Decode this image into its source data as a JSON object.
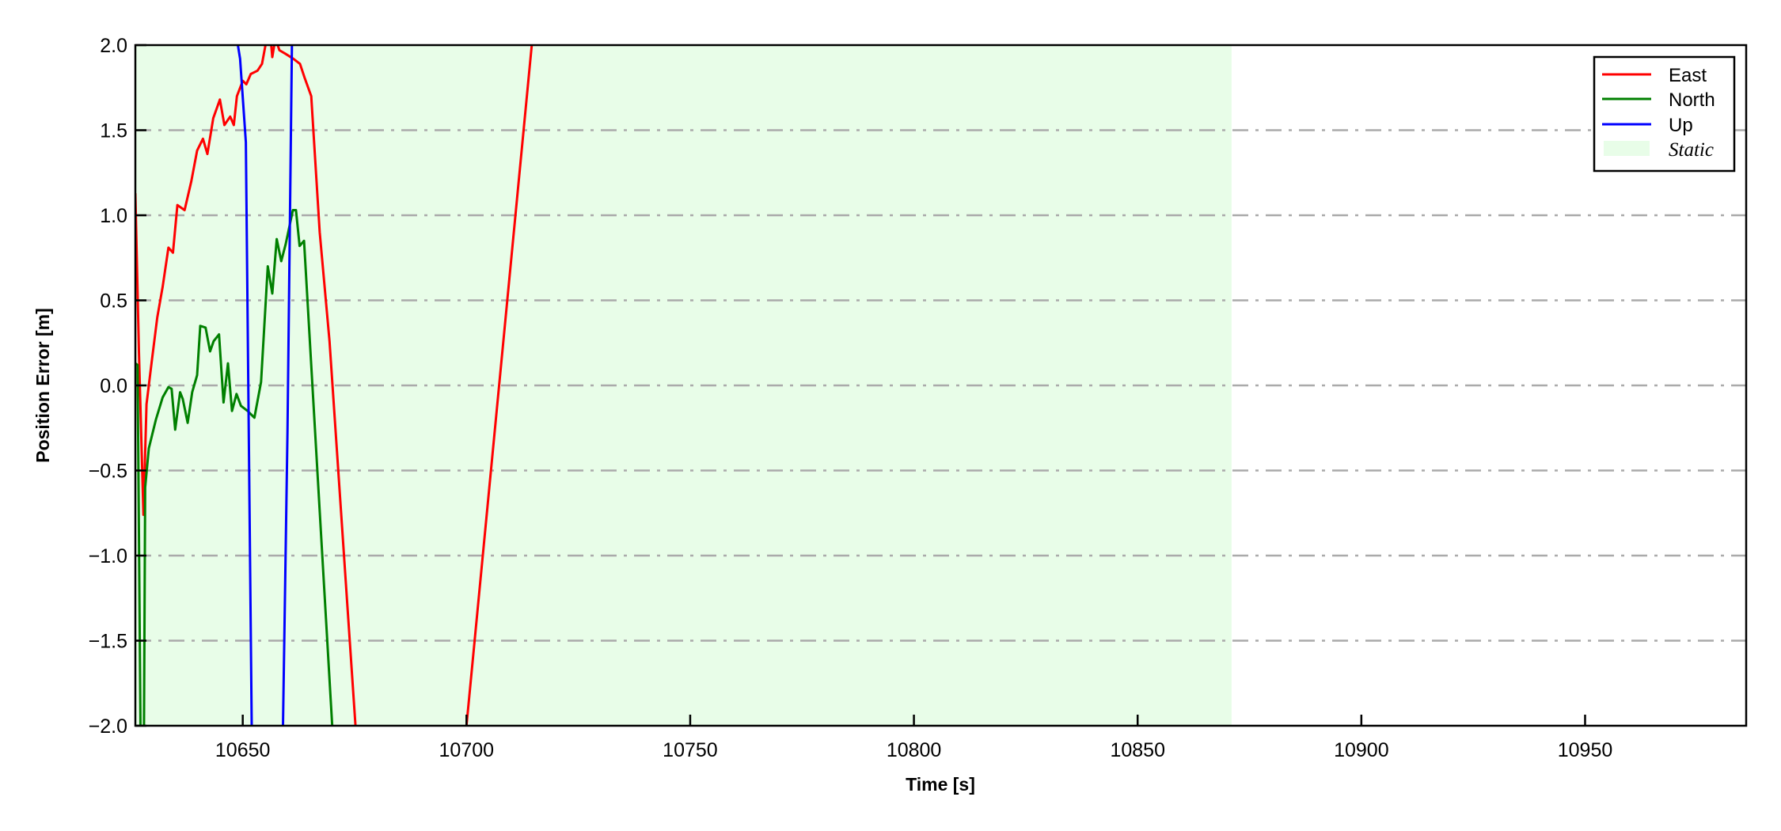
{
  "chart_data": {
    "type": "line",
    "xlabel": "Time [s]",
    "ylabel": "Position Error [m]",
    "xlim": [
      10626,
      10986
    ],
    "ylim": [
      -2.0,
      2.0
    ],
    "xticks": [
      10650,
      10700,
      10750,
      10800,
      10850,
      10900,
      10950
    ],
    "xtick_labels": [
      "10650",
      "10700",
      "10750",
      "10800",
      "10850",
      "10900",
      "10950"
    ],
    "yticks": [
      2.0,
      1.5,
      1.0,
      0.5,
      0.0,
      -0.5,
      -1.0,
      -1.5,
      -2.0
    ],
    "ytick_labels": [
      "2.0",
      "1.5",
      "1.0",
      "0.5",
      "0.0",
      "−0.5",
      "−1.0",
      "−1.5",
      "−2.0"
    ],
    "grid": "horizontal dash-dot",
    "legend_position": "top-right",
    "shaded_region": {
      "name": "Static",
      "x": [
        10626,
        10871
      ],
      "color": "#e8fde8"
    },
    "series": [
      {
        "name": "East",
        "color": "#ff0000",
        "points": [
          [
            10626,
            1.13
          ],
          [
            10626.8,
            0.2
          ],
          [
            10627.8,
            -0.76
          ],
          [
            10628.5,
            -0.11
          ],
          [
            10629.6,
            0.13
          ],
          [
            10630.9,
            0.4
          ],
          [
            10632.1,
            0.58
          ],
          [
            10633.4,
            0.81
          ],
          [
            10634.4,
            0.78
          ],
          [
            10635.4,
            1.06
          ],
          [
            10637,
            1.03
          ],
          [
            10638.5,
            1.2
          ],
          [
            10639.8,
            1.38
          ],
          [
            10641.1,
            1.45
          ],
          [
            10642.1,
            1.36
          ],
          [
            10643.4,
            1.57
          ],
          [
            10644.9,
            1.68
          ],
          [
            10645.9,
            1.53
          ],
          [
            10647.2,
            1.58
          ],
          [
            10648,
            1.53
          ],
          [
            10648.7,
            1.7
          ],
          [
            10650,
            1.79
          ],
          [
            10650.8,
            1.77
          ],
          [
            10651.8,
            1.83
          ],
          [
            10653.3,
            1.85
          ],
          [
            10654.3,
            1.89
          ],
          [
            10655.3,
            2.03
          ],
          [
            10656.2,
            2.05
          ],
          [
            10656.6,
            1.93
          ],
          [
            10657.3,
            2.04
          ],
          [
            10658.2,
            1.97
          ],
          [
            10659.5,
            1.95
          ],
          [
            10661.3,
            1.92
          ],
          [
            10662.8,
            1.89
          ],
          [
            10663.8,
            1.81
          ],
          [
            10665.3,
            1.7
          ],
          [
            10667.2,
            0.9
          ],
          [
            10669.4,
            0.26
          ],
          [
            10675.2,
            -2.0
          ],
          [
            10676,
            -2.2
          ],
          [
            10699.6,
            -2.2
          ],
          [
            10700,
            -2.0
          ],
          [
            10714.6,
            2.0
          ],
          [
            10716,
            2.3
          ]
        ]
      },
      {
        "name": "North",
        "color": "#008000",
        "points": [
          [
            10626,
            0.13
          ],
          [
            10626.5,
            0.12
          ],
          [
            10627.2,
            -2.2
          ],
          [
            10627.9,
            -2.2
          ],
          [
            10628.2,
            -0.6
          ],
          [
            10629,
            -0.37
          ],
          [
            10630.6,
            -0.2
          ],
          [
            10632.1,
            -0.07
          ],
          [
            10633.4,
            -0.01
          ],
          [
            10634.1,
            -0.02
          ],
          [
            10634.9,
            -0.26
          ],
          [
            10636,
            -0.04
          ],
          [
            10636.6,
            -0.08
          ],
          [
            10637.7,
            -0.22
          ],
          [
            10638.7,
            -0.04
          ],
          [
            10639.8,
            0.06
          ],
          [
            10640.5,
            0.35
          ],
          [
            10641.7,
            0.34
          ],
          [
            10642.7,
            0.2
          ],
          [
            10643.5,
            0.26
          ],
          [
            10644.7,
            0.3
          ],
          [
            10645.7,
            -0.1
          ],
          [
            10646.7,
            0.13
          ],
          [
            10647.6,
            -0.15
          ],
          [
            10648.6,
            -0.05
          ],
          [
            10649.6,
            -0.12
          ],
          [
            10651.1,
            -0.15
          ],
          [
            10652.6,
            -0.19
          ],
          [
            10654.1,
            0.02
          ],
          [
            10655.6,
            0.7
          ],
          [
            10656.6,
            0.54
          ],
          [
            10657.6,
            0.86
          ],
          [
            10658.6,
            0.73
          ],
          [
            10659.6,
            0.83
          ],
          [
            10661.2,
            1.03
          ],
          [
            10661.9,
            1.03
          ],
          [
            10662.7,
            0.82
          ],
          [
            10663.7,
            0.85
          ],
          [
            10667.2,
            -0.74
          ],
          [
            10670,
            -2.0
          ],
          [
            10670.2,
            -2.2
          ]
        ]
      },
      {
        "name": "Up",
        "color": "#0000ff",
        "points": [
          [
            10648,
            2.3
          ],
          [
            10648.6,
            2.05
          ],
          [
            10649.4,
            1.92
          ],
          [
            10650.7,
            1.43
          ],
          [
            10652,
            -2.0
          ],
          [
            10652.1,
            -2.2
          ],
          [
            10658.8,
            -2.2
          ],
          [
            10659,
            -2.0
          ],
          [
            10660,
            -0.27
          ],
          [
            10661,
            2.0
          ],
          [
            10661.2,
            2.2
          ]
        ]
      }
    ]
  }
}
